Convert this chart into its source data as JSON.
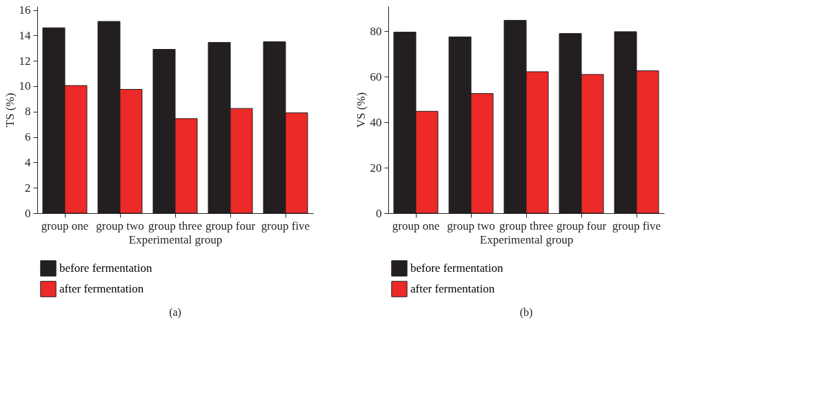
{
  "chart_data": [
    {
      "type": "bar",
      "xlabel": "Experimental group",
      "ylabel": "TS (%)",
      "categories": [
        "group one",
        "group two",
        "group three",
        "group four",
        "group five"
      ],
      "series": [
        {
          "name": "before fermentation",
          "color": "#231f20",
          "values": [
            14.6,
            15.1,
            12.9,
            13.45,
            13.5
          ]
        },
        {
          "name": "after fermentation",
          "color": "#ec2a28",
          "values": [
            10.05,
            9.75,
            7.45,
            8.25,
            7.9
          ]
        }
      ],
      "ylim": [
        0,
        16.3
      ],
      "yticks": [
        0,
        2,
        4,
        6,
        8,
        10,
        12,
        14,
        16
      ],
      "grid": false,
      "legend": "bottom left",
      "annotations": [
        "(a)"
      ]
    },
    {
      "type": "bar",
      "xlabel": "Experimental group",
      "ylabel": "VS (%)",
      "categories": [
        "group one",
        "group two",
        "group three",
        "group four",
        "group five"
      ],
      "series": [
        {
          "name": "before fermentation",
          "color": "#231f20",
          "values": [
            79.6,
            77.5,
            84.8,
            79.0,
            79.8
          ]
        },
        {
          "name": "after fermentation",
          "color": "#ec2a28",
          "values": [
            44.8,
            52.6,
            62.2,
            61.0,
            62.6
          ]
        }
      ],
      "ylim": [
        0,
        91
      ],
      "yticks": [
        0,
        20,
        40,
        60,
        80
      ],
      "grid": false,
      "legend": "bottom left",
      "annotations": [
        "(b)"
      ]
    }
  ]
}
